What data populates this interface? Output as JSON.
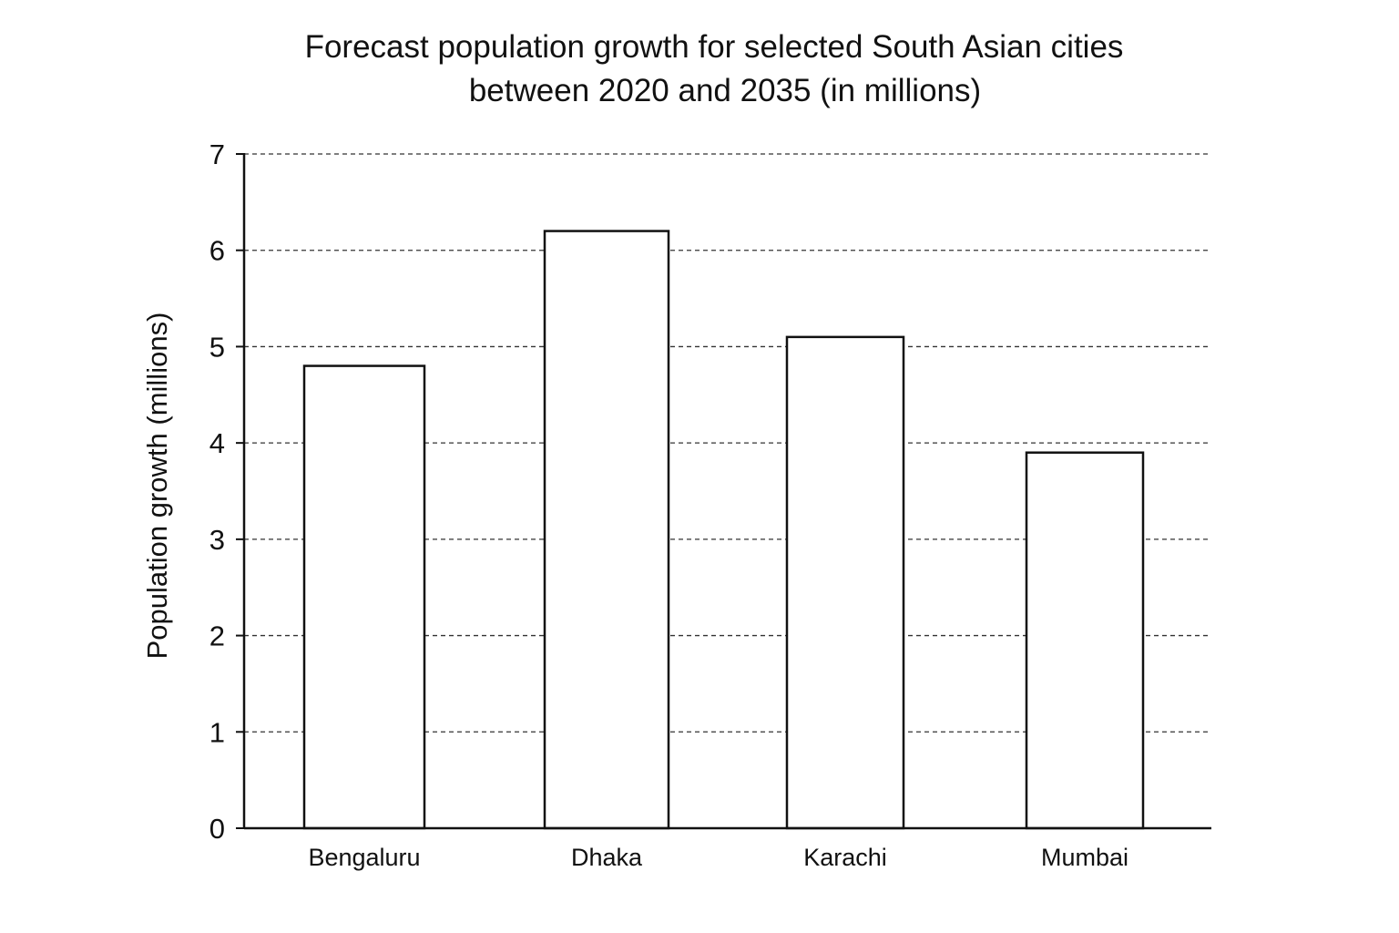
{
  "chart_data": {
    "type": "bar",
    "title_lines": [
      "Forecast population growth for selected South Asian cities",
      "between 2020 and 2035 (in millions)"
    ],
    "xlabel": "",
    "ylabel": "Population growth (millions)",
    "categories": [
      "Bengaluru",
      "Dhaka",
      "Karachi",
      "Mumbai"
    ],
    "values": [
      4.8,
      6.2,
      5.1,
      3.9
    ],
    "ylim": [
      0,
      7
    ],
    "yticks": [
      0,
      1,
      2,
      3,
      4,
      5,
      6,
      7
    ],
    "grid": true,
    "bar_fill": "#ffffff",
    "bar_stroke": "#111111"
  }
}
